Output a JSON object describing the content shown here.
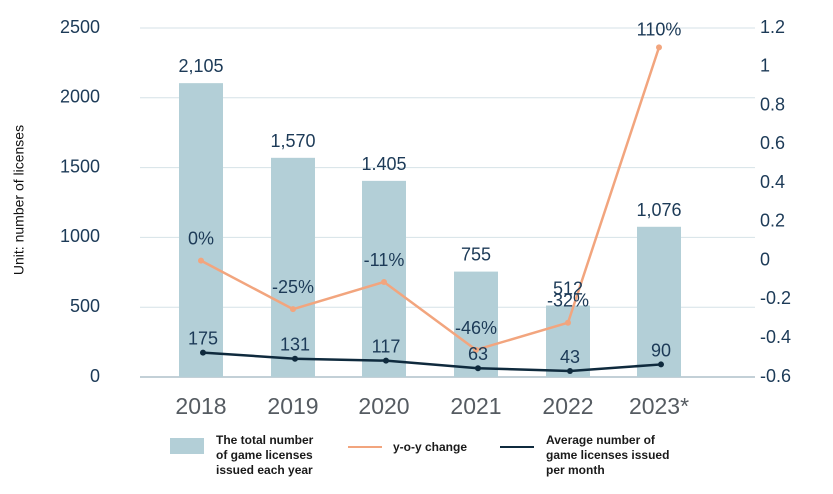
{
  "chart_data": {
    "type": "bar",
    "ylabel": "Unit: number of licenses",
    "categories": [
      "2018",
      "2019",
      "2020",
      "2021",
      "2022",
      "2023*"
    ],
    "ylim": [
      0,
      2500
    ],
    "y_ticks": [
      "0",
      "500",
      "1000",
      "1500",
      "2000",
      "2500"
    ],
    "y2lim": [
      -0.6,
      1.2
    ],
    "y2_ticks": [
      "-0.6",
      "-0.4",
      "-0.2",
      "0",
      "0.2",
      "0.4",
      "0.6",
      "0.8",
      "1",
      "1.2"
    ],
    "series": [
      {
        "name": "The total number of game licenses issued each year",
        "type": "bar",
        "axis": "left",
        "color": "#b3cfd7",
        "values": [
          2105,
          1570,
          1405,
          755,
          512,
          1076
        ],
        "labels": [
          "2,105",
          "1,570",
          "1.405",
          "755",
          "512",
          "1,076"
        ]
      },
      {
        "name": "y-o-y change",
        "type": "line",
        "axis": "right",
        "color": "#f2a57e",
        "values": [
          0,
          -0.25,
          -0.11,
          -0.46,
          -0.32,
          1.1
        ],
        "labels": [
          "0%",
          "-25%",
          "-11%",
          "-46%",
          "-32%",
          "110%"
        ]
      },
      {
        "name": "Average number of game licenses issued per month",
        "type": "line",
        "axis": "left",
        "color": "#0f2a3d",
        "values": [
          175,
          131,
          117,
          63,
          43,
          90
        ],
        "labels": [
          "175",
          "131",
          "117",
          "63",
          "43",
          "90"
        ]
      }
    ]
  },
  "legend": [
    {
      "label": "The total number\nof game licenses\nissued each year",
      "kind": "bar",
      "color": "#b3cfd7"
    },
    {
      "label": "y-o-y change",
      "kind": "line",
      "color": "#f2a57e"
    },
    {
      "label": "Average number of\ngame licenses issued\nper month",
      "kind": "line",
      "color": "#0f2a3d"
    }
  ]
}
